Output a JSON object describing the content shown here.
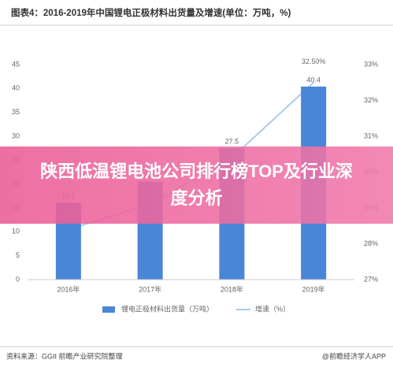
{
  "chart_data": {
    "type": "bar-line",
    "title": "图表4：2016-2019年中国锂电正极材料出货量及增速(单位：万吨，%)",
    "categories": [
      "2016年",
      "2017年",
      "2018年",
      "2019年"
    ],
    "series": [
      {
        "name": "锂电正极材料出货量（万吨）",
        "type": "bar",
        "color": "#4a86d8",
        "values": [
          16.1,
          20.5,
          27.5,
          40.4
        ]
      },
      {
        "name": "增速（%）",
        "type": "line",
        "axis": "y2",
        "color": "#a9cbef",
        "values": [
          28.4,
          29.1,
          30.4,
          32.5
        ],
        "value_labels": [
          null,
          null,
          null,
          "32.50%"
        ]
      }
    ],
    "ylim": [
      0,
      45
    ],
    "yticks": [
      0,
      5,
      10,
      15,
      20,
      25,
      30,
      35,
      40,
      45
    ],
    "y2lim": [
      27,
      33
    ],
    "y2ticks": [
      {
        "value": 27,
        "label": "27%"
      },
      {
        "value": 28,
        "label": "28%"
      },
      {
        "value": 29,
        "label": "29%"
      },
      {
        "value": 30,
        "label": "30%"
      },
      {
        "value": 31,
        "label": "31%"
      },
      {
        "value": 32,
        "label": "32%"
      },
      {
        "value": 33,
        "label": "33%"
      }
    ],
    "source": "资料来源：GGII 前瞻产业研究院整理",
    "credit": "@前瞻经济学人APP",
    "banner": "陕西低温锂电池公司排行榜TOP及行业深度分析"
  }
}
